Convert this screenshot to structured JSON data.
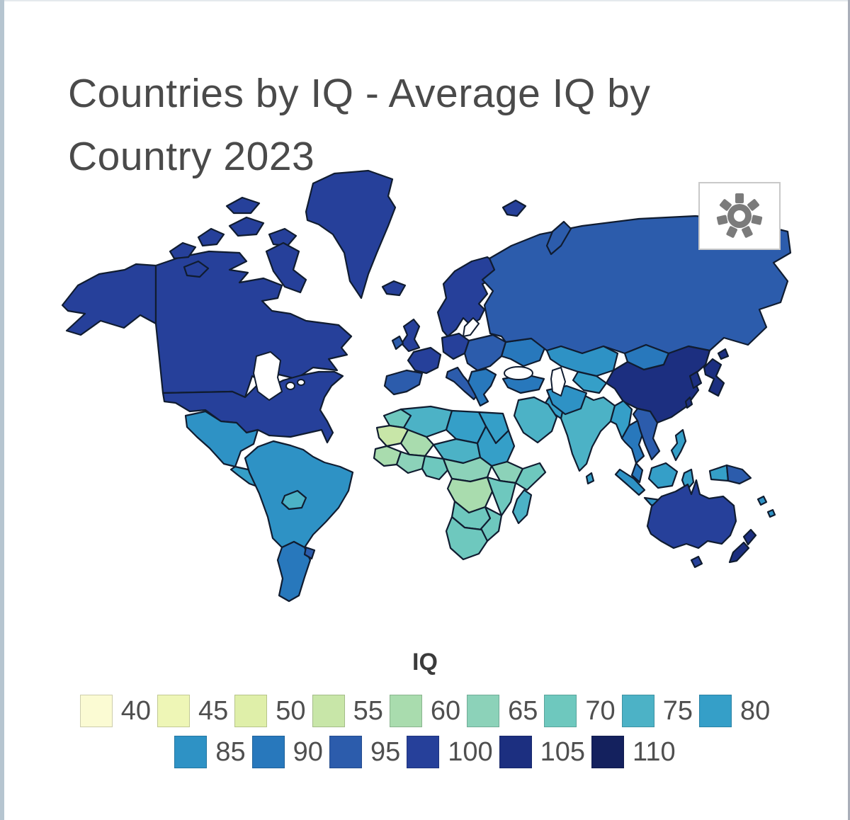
{
  "page": {
    "title": "Countries by IQ - Average IQ by Country 2023"
  },
  "controls": {
    "settings_button": "map settings"
  },
  "chart_data": {
    "type": "heatmap",
    "subtype": "choropleth-world-map",
    "title": "Countries by IQ - Average IQ by Country 2023",
    "legend_title": "IQ",
    "legend_position": "bottom",
    "legend_rows": [
      9,
      6
    ],
    "bins": [
      {
        "value": 40,
        "color": "#fbfbd3"
      },
      {
        "value": 45,
        "color": "#eef6b6"
      },
      {
        "value": 50,
        "color": "#dfefa9"
      },
      {
        "value": 55,
        "color": "#c8e6a8"
      },
      {
        "value": 60,
        "color": "#a9dcae"
      },
      {
        "value": 65,
        "color": "#8cd2b9"
      },
      {
        "value": 70,
        "color": "#6ec8be"
      },
      {
        "value": 75,
        "color": "#4cb2c6"
      },
      {
        "value": 80,
        "color": "#359fc8"
      },
      {
        "value": 85,
        "color": "#2e92c5"
      },
      {
        "value": 90,
        "color": "#2878bc"
      },
      {
        "value": 95,
        "color": "#2c5cac"
      },
      {
        "value": 100,
        "color": "#26409a"
      },
      {
        "value": 105,
        "color": "#1c2f80"
      },
      {
        "value": 110,
        "color": "#14215e"
      }
    ],
    "regions": {
      "alaska": 100,
      "canada": 100,
      "usa": 100,
      "arctic-islands": 100,
      "baffin": 100,
      "greenland": 100,
      "iceland": 100,
      "mexico": 85,
      "central-america": 80,
      "cuba": 85,
      "hispaniola": 80,
      "south-america-main": 85,
      "bolivia": 75,
      "argentina-chile": 90,
      "uruguay": 95,
      "uk": 100,
      "ireland": 95,
      "scandinavia": 100,
      "denmark": 100,
      "germany-central": 100,
      "france": 100,
      "iberia": 95,
      "italy": 95,
      "eastern-europe": 95,
      "balkans": 90,
      "ukraine": 90,
      "russia": 95,
      "svalbard": 100,
      "novaya-zemlya": 95,
      "kazakhstan": 85,
      "central-asia": 80,
      "mongolia": 90,
      "china": 105,
      "korea": 105,
      "japan": 105,
      "taiwan": 105,
      "pakistan": 80,
      "india": 75,
      "sri-lanka": 80,
      "turkey": 90,
      "iran": 85,
      "saudi-arabia": 75,
      "myanmar": 80,
      "thailand": 90,
      "vietnam-laos": 95,
      "malaysia": 90,
      "sumatra-java": 85,
      "borneo": 80,
      "sulawesi": 80,
      "philippines": 80,
      "new-guinea-west": 80,
      "new-guinea-east": 95,
      "pacific-islands": 85,
      "australia": 100,
      "tasmania": 100,
      "new-zealand": 105,
      "morocco": 70,
      "algeria": 75,
      "libya": 80,
      "egypt": 80,
      "mauritania": 55,
      "mali": 60,
      "niger-chad": 75,
      "senegal-guinea": 60,
      "west-africa-coast": 65,
      "nigeria": 70,
      "sudan": 80,
      "ethiopia": 65,
      "somalia": 70,
      "cameroon-car": 65,
      "drc": 60,
      "east-africa": 70,
      "angola-namibia": 70,
      "zambia-mozambique": 70,
      "south-africa": 70,
      "madagascar": 75
    }
  }
}
